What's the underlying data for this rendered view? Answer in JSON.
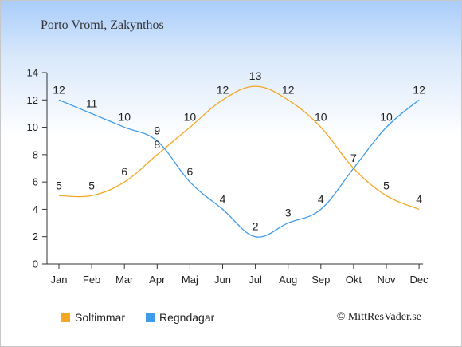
{
  "chart_data": {
    "type": "line",
    "title": "Porto Vromi, Zakynthos",
    "categories": [
      "Jan",
      "Feb",
      "Mar",
      "Apr",
      "Maj",
      "Jun",
      "Jul",
      "Aug",
      "Sep",
      "Okt",
      "Nov",
      "Dec"
    ],
    "series": [
      {
        "name": "Soltimmar",
        "color": "#f5a623",
        "values": [
          5,
          5,
          6,
          8,
          10,
          12,
          13,
          12,
          10,
          7,
          5,
          4
        ]
      },
      {
        "name": "Regndagar",
        "color": "#3d9be9",
        "values": [
          12,
          11,
          10,
          9,
          6,
          4,
          2,
          3,
          4,
          7,
          10,
          12
        ]
      }
    ],
    "ylim": [
      0,
      14
    ],
    "yticks": [
      0,
      2,
      4,
      6,
      8,
      10,
      12,
      14
    ],
    "grid": false,
    "legend_position": "bottom-left"
  },
  "credit": "© MittResVader.se"
}
